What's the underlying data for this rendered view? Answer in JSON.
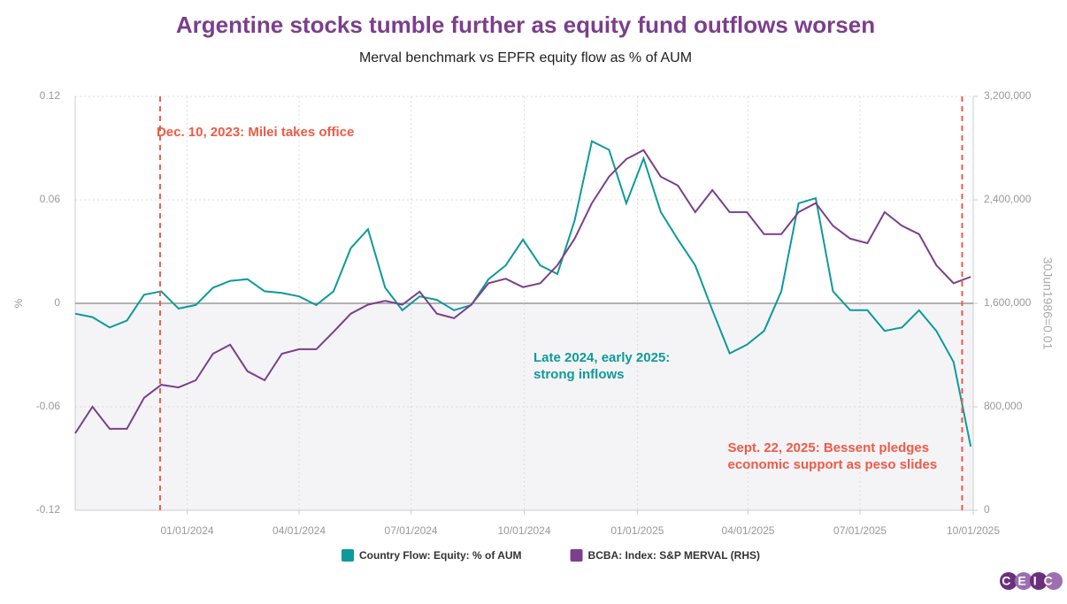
{
  "chart_data": {
    "type": "line",
    "title": "Argentine stocks tumble further as equity fund outflows worsen",
    "subtitle": "Merval benchmark vs EPFR equity flow as % of AUM",
    "y_label": "%",
    "y2_label": "30Jun1986=0.01",
    "x": [
      "2023-10-02",
      "2023-10-16",
      "2023-10-30",
      "2023-11-13",
      "2023-11-27",
      "2023-12-11",
      "2023-12-25",
      "2024-01-08",
      "2024-01-22",
      "2024-02-05",
      "2024-02-19",
      "2024-03-04",
      "2024-03-18",
      "2024-04-01",
      "2024-04-15",
      "2024-04-29",
      "2024-05-13",
      "2024-05-27",
      "2024-06-10",
      "2024-06-24",
      "2024-07-08",
      "2024-07-22",
      "2024-08-05",
      "2024-08-19",
      "2024-09-02",
      "2024-09-16",
      "2024-09-30",
      "2024-10-14",
      "2024-10-28",
      "2024-11-11",
      "2024-11-25",
      "2024-12-09",
      "2024-12-23",
      "2025-01-06",
      "2025-01-20",
      "2025-02-03",
      "2025-02-17",
      "2025-03-03",
      "2025-03-17",
      "2025-03-31",
      "2025-04-14",
      "2025-04-28",
      "2025-05-12",
      "2025-05-26",
      "2025-06-09",
      "2025-06-23",
      "2025-07-07",
      "2025-07-21",
      "2025-08-04",
      "2025-08-18",
      "2025-09-01",
      "2025-09-15",
      "2025-09-29"
    ],
    "series": [
      {
        "name": "Country Flow: Equity: % of AUM",
        "color": "#0e9a9a",
        "values": [
          -0.006,
          -0.008,
          -0.014,
          -0.01,
          0.005,
          0.007,
          -0.003,
          -0.001,
          0.009,
          0.013,
          0.014,
          0.007,
          0.006,
          0.004,
          -0.001,
          0.007,
          0.032,
          0.043,
          0.009,
          -0.004,
          0.004,
          0.002,
          -0.004,
          -0.001,
          0.014,
          0.022,
          0.037,
          0.022,
          0.017,
          0.048,
          0.094,
          0.089,
          0.058,
          0.084,
          0.053,
          0.037,
          0.022,
          -0.004,
          -0.029,
          -0.024,
          -0.016,
          0.007,
          0.058,
          0.061,
          0.007,
          -0.004,
          -0.004,
          -0.016,
          -0.014,
          -0.004,
          -0.016,
          -0.034,
          -0.083
        ]
      },
      {
        "name": "BCBA: Index: S&P MERVAL (RHS)",
        "color": "#7b3f8c",
        "axis": "y2",
        "values": [
          595000,
          800000,
          630000,
          630000,
          870000,
          970000,
          950000,
          1005000,
          1210000,
          1280000,
          1075000,
          1005000,
          1210000,
          1245000,
          1245000,
          1380000,
          1520000,
          1590000,
          1620000,
          1590000,
          1690000,
          1520000,
          1485000,
          1590000,
          1755000,
          1790000,
          1725000,
          1755000,
          1895000,
          2100000,
          2375000,
          2580000,
          2715000,
          2785000,
          2580000,
          2510000,
          2305000,
          2475000,
          2305000,
          2305000,
          2135000,
          2135000,
          2305000,
          2375000,
          2200000,
          2100000,
          2065000,
          2305000,
          2200000,
          2135000,
          1895000,
          1755000,
          1805000
        ]
      }
    ],
    "xlim": [
      "2023-10-02",
      "2025-10-01"
    ],
    "xticks": [
      {
        "value": "2024-01-01",
        "label": "01/01/2024"
      },
      {
        "value": "2024-04-01",
        "label": "04/01/2024"
      },
      {
        "value": "2024-07-01",
        "label": "07/01/2024"
      },
      {
        "value": "2024-10-01",
        "label": "10/01/2024"
      },
      {
        "value": "2025-01-01",
        "label": "01/01/2025"
      },
      {
        "value": "2025-04-01",
        "label": "04/01/2025"
      },
      {
        "value": "2025-07-01",
        "label": "07/01/2025"
      },
      {
        "value": "2025-10-01",
        "label": "10/01/2025"
      }
    ],
    "ylim": [
      -0.12,
      0.12
    ],
    "yticks": [
      -0.12,
      -0.06,
      0,
      0.06,
      0.12
    ],
    "y2lim": [
      0,
      3200000
    ],
    "y2ticks": [
      0,
      {
        "value": 800000,
        "label": "800,000"
      },
      {
        "value": 1600000,
        "label": "1,600,000"
      },
      {
        "value": 2400000,
        "label": "2,400,000"
      },
      {
        "value": 3200000,
        "label": "3,200,000"
      }
    ],
    "grid": true,
    "events": [
      {
        "x": "2023-12-10",
        "label": [
          "Dec. 10, 2023: Milei takes office"
        ],
        "color": "#ef5a45"
      },
      {
        "x": "2025-09-22",
        "label": [
          "Sept. 22, 2025: Bessent pledges",
          "economic support as peso slides"
        ],
        "color": "#ef5a45"
      }
    ],
    "annotation": {
      "label": [
        "Late 2024, early 2025:",
        "strong inflows"
      ],
      "color": "#0e9a9a"
    },
    "legend": "bottom",
    "source_logo": "CEIC"
  }
}
